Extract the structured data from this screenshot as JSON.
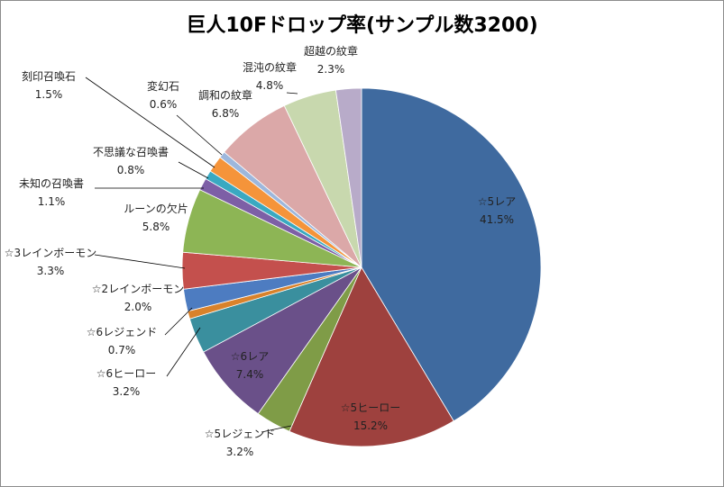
{
  "chart_data": {
    "type": "pie",
    "title": "巨人10Fドロップ率(サンプル数3200)",
    "slices": [
      {
        "label": "☆5レア",
        "value": 41.5,
        "pct": "41.5%",
        "color": "#3f6a9f"
      },
      {
        "label": "☆5ヒーロー",
        "value": 15.2,
        "pct": "15.2%",
        "color": "#9e413e"
      },
      {
        "label": "☆5レジェンド",
        "value": 3.2,
        "pct": "3.2%",
        "color": "#7f9c47"
      },
      {
        "label": "☆6レア",
        "value": 7.4,
        "pct": "7.4%",
        "color": "#6a5089"
      },
      {
        "label": "☆6ヒーロー",
        "value": 3.2,
        "pct": "3.2%",
        "color": "#3a8f9e"
      },
      {
        "label": "☆6レジェンド",
        "value": 0.7,
        "pct": "0.7%",
        "color": "#d9822b"
      },
      {
        "label": "☆2レインボーモン",
        "value": 2.0,
        "pct": "2.0%",
        "color": "#4d7cc1"
      },
      {
        "label": "☆3レインボーモン",
        "value": 3.3,
        "pct": "3.3%",
        "color": "#c4504d"
      },
      {
        "label": "ルーンの欠片",
        "value": 5.8,
        "pct": "5.8%",
        "color": "#8db555"
      },
      {
        "label": "未知の召喚書",
        "value": 1.1,
        "pct": "1.1%",
        "color": "#7d5fa6"
      },
      {
        "label": "不思議な召喚書",
        "value": 0.8,
        "pct": "0.8%",
        "color": "#3aa9c1"
      },
      {
        "label": "刻印召喚石",
        "value": 1.5,
        "pct": "1.5%",
        "color": "#f5943a"
      },
      {
        "label": "変幻石",
        "value": 0.6,
        "pct": "0.6%",
        "color": "#9db7dc"
      },
      {
        "label": "調和の紋章",
        "value": 6.8,
        "pct": "6.8%",
        "color": "#dba8a8"
      },
      {
        "label": "混沌の紋章",
        "value": 4.8,
        "pct": "4.8%",
        "color": "#c8d8ae"
      },
      {
        "label": "超越の紋章",
        "value": 2.3,
        "pct": "2.3%",
        "color": "#b8abc9"
      }
    ],
    "legend": "none",
    "start": "top",
    "direction": "clockwise"
  }
}
